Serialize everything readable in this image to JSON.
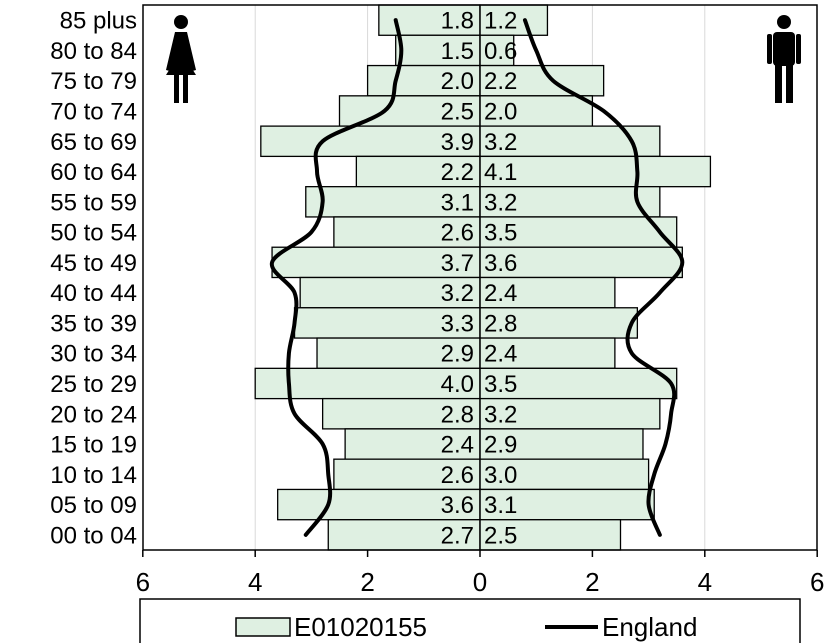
{
  "chart_data": {
    "type": "bar",
    "orientation": "horizontal",
    "categories": [
      "85 plus",
      "80 to 84",
      "75 to 79",
      "70 to 74",
      "65 to 69",
      "60 to 64",
      "55 to 59",
      "50 to 54",
      "45 to 49",
      "40 to 44",
      "35 to 39",
      "30 to 34",
      "25 to 29",
      "20 to 24",
      "15 to 19",
      "10 to 14",
      "05 to 09",
      "00 to 04"
    ],
    "series": [
      {
        "name": "E01020155",
        "side": "female",
        "values": [
          1.8,
          1.5,
          2.0,
          2.5,
          3.9,
          2.2,
          3.1,
          2.6,
          3.7,
          3.2,
          3.3,
          2.9,
          4.0,
          2.8,
          2.4,
          2.6,
          3.6,
          2.7
        ]
      },
      {
        "name": "E01020155",
        "side": "male",
        "values": [
          1.2,
          0.6,
          2.2,
          2.0,
          3.2,
          4.1,
          3.2,
          3.5,
          3.6,
          2.4,
          2.8,
          2.4,
          3.5,
          3.2,
          2.9,
          3.0,
          3.1,
          2.5
        ]
      }
    ],
    "england_line": {
      "name": "England",
      "female": [
        1.5,
        1.4,
        1.5,
        1.7,
        2.8,
        2.9,
        2.8,
        3.0,
        3.7,
        3.3,
        3.3,
        3.4,
        3.4,
        3.3,
        2.8,
        2.7,
        2.7,
        3.1
      ],
      "male": [
        0.8,
        1.0,
        1.3,
        2.2,
        2.7,
        2.8,
        2.8,
        3.2,
        3.6,
        3.2,
        2.7,
        2.7,
        3.4,
        3.4,
        3.3,
        3.1,
        3.0,
        3.2
      ]
    },
    "xlim": [
      -6,
      6
    ],
    "x_ticks": [
      "6",
      "4",
      "2",
      "0",
      "2",
      "4",
      "6"
    ],
    "grid": true,
    "legend_position": "bottom",
    "legend": {
      "bar_label": "E01020155",
      "line_label": "England"
    },
    "colors": {
      "bar_fill": "#dff0e2",
      "bar_stroke": "#000000",
      "line": "#000000",
      "grid": "#d9d9d9"
    }
  },
  "icons": {
    "left": "female-icon",
    "right": "male-icon"
  }
}
